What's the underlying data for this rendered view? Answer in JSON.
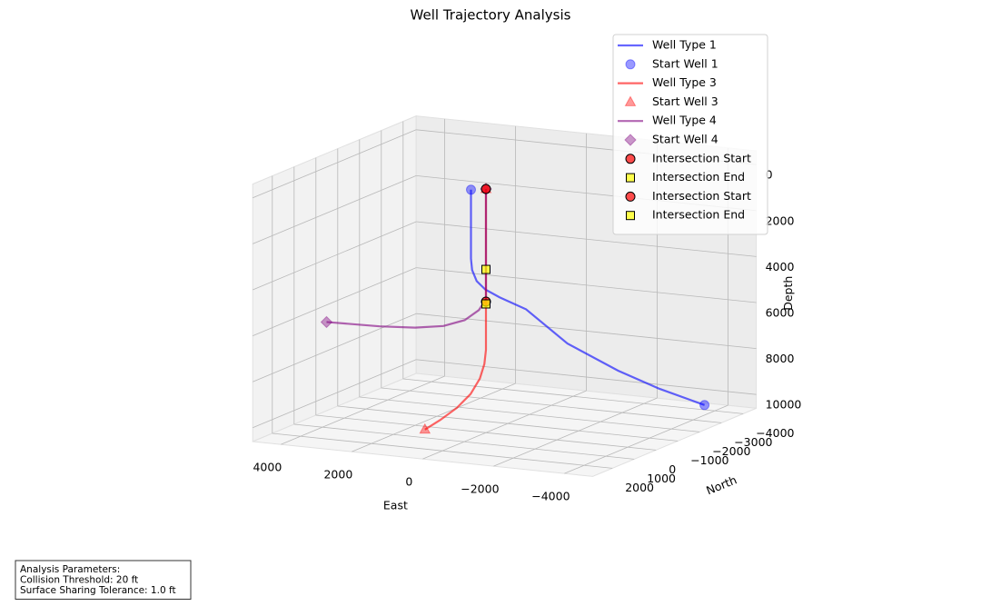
{
  "chart_data": {
    "type": "line3d",
    "title": "Well Trajectory Analysis",
    "xlabel": "East",
    "ylabel": "North",
    "zlabel": "Depth",
    "xlim": [
      -4800,
      4800
    ],
    "ylim": [
      -4600,
      2900
    ],
    "zlim": [
      -600,
      10600
    ],
    "xticks": [
      4000,
      2000,
      0,
      {
        "value": -2000,
        "label": "−2000"
      },
      {
        "value": -4000,
        "label": "−4000"
      }
    ],
    "yticks": [
      2000,
      1000,
      0,
      {
        "value": -1000,
        "label": "−1000"
      },
      {
        "value": -2000,
        "label": "−2000"
      },
      {
        "value": -3000,
        "label": "−3000"
      },
      {
        "value": -4000,
        "label": "−4000"
      }
    ],
    "zticks": [
      0,
      2000,
      4000,
      6000,
      8000,
      10000
    ],
    "grid": true,
    "legend": "upper right",
    "series": [
      {
        "name": "Well Type 1",
        "kind": "line",
        "color": "#0000ff",
        "alpha": 0.6,
        "x": [
          300,
          300,
          300,
          280,
          200,
          50,
          -200,
          -700,
          -1500,
          -2500,
          -3300,
          -4200
        ],
        "y": [
          200,
          200,
          200,
          180,
          100,
          -50,
          -300,
          -700,
          -1300,
          -2000,
          -2600,
          -3200
        ],
        "z": [
          0,
          1500,
          3000,
          3500,
          4000,
          4400,
          4800,
          5400,
          7000,
          8300,
          9200,
          10000
        ]
      },
      {
        "name": "Start Well 1",
        "kind": "scatter",
        "marker": "o",
        "color": "#0000ff",
        "alpha": 0.4,
        "x": [
          300,
          -4200
        ],
        "y": [
          200,
          -3200
        ],
        "z": [
          0,
          10000
        ]
      },
      {
        "name": "Well Type 3",
        "kind": "line",
        "color": "#ff0000",
        "alpha": 0.6,
        "x": [
          0,
          0,
          0,
          0,
          0,
          0,
          20,
          80,
          200,
          380,
          600,
          800
        ],
        "y": [
          0,
          0,
          0,
          0,
          0,
          0,
          40,
          150,
          380,
          720,
          1120,
          1500
        ],
        "z": [
          0,
          2000,
          4000,
          5000,
          6000,
          7000,
          7600,
          8200,
          8800,
          9300,
          9700,
          10000
        ]
      },
      {
        "name": "Start Well 3",
        "kind": "scatter",
        "marker": "^",
        "color": "#ff0000",
        "alpha": 0.4,
        "x": [
          0,
          800
        ],
        "y": [
          0,
          1500
        ],
        "z": [
          0,
          10000
        ]
      },
      {
        "name": "Well Type 4",
        "kind": "line",
        "color": "#800080",
        "alpha": 0.6,
        "x": [
          0,
          0,
          0,
          0,
          200,
          600,
          1200,
          2000,
          3000,
          4500
        ],
        "y": [
          0,
          0,
          0,
          0,
          0,
          0,
          0,
          0,
          0,
          0
        ],
        "z": [
          0,
          2000,
          4000,
          4800,
          5300,
          5800,
          6150,
          6350,
          6450,
          6500
        ]
      },
      {
        "name": "Start Well 4",
        "kind": "scatter",
        "marker": "D",
        "color": "#800080",
        "alpha": 0.4,
        "x": [
          0,
          4500
        ],
        "y": [
          0,
          0
        ],
        "z": [
          0,
          6500
        ]
      },
      {
        "name": "Intersection Start",
        "kind": "scatter",
        "marker": "o",
        "color": "#ff0000",
        "edgecolor": "#000000",
        "alpha": 0.7,
        "x": [
          0
        ],
        "y": [
          0
        ],
        "z": [
          0
        ]
      },
      {
        "name": "Intersection End",
        "kind": "scatter",
        "marker": "s",
        "color": "#ffff00",
        "edgecolor": "#000000",
        "alpha": 0.7,
        "x": [
          0
        ],
        "y": [
          0
        ],
        "z": [
          3500
        ]
      },
      {
        "name": "Intersection Start",
        "kind": "scatter",
        "marker": "o",
        "color": "#ff0000",
        "edgecolor": "#000000",
        "alpha": 0.7,
        "x": [
          0
        ],
        "y": [
          0
        ],
        "z": [
          4900
        ]
      },
      {
        "name": "Intersection End",
        "kind": "scatter",
        "marker": "s",
        "color": "#ffff00",
        "edgecolor": "#000000",
        "alpha": 0.7,
        "x": [
          0
        ],
        "y": [
          0
        ],
        "z": [
          5000
        ]
      }
    ],
    "annotation": {
      "lines": [
        "Analysis Parameters:",
        "Collision Threshold: 20 ft",
        "Surface Sharing Tolerance: 1.0 ft"
      ]
    }
  }
}
